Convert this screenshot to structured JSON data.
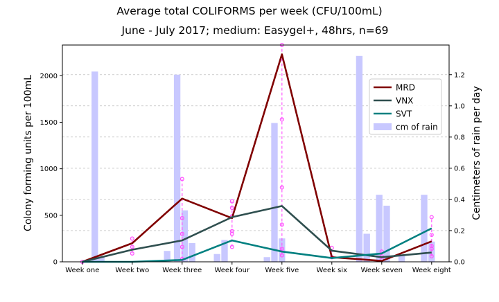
{
  "chart_data": {
    "type": "line",
    "title": "Average total COLIFORMS per week (CFU/100mL)",
    "subtitle": "June - July 2017; medium: Easygel+, 48hrs, n=69",
    "ylabel": "Colony forming units per 100mL",
    "y2label": "Centimeters of rain per day",
    "categories": [
      "Week one",
      "Week two",
      "Week three",
      "Week four",
      "Week five",
      "Week six",
      "Week seven",
      "Week eight"
    ],
    "ylim": [
      0,
      2330
    ],
    "yticks": [
      0,
      500,
      1000,
      1500,
      2000
    ],
    "y2lim": [
      0,
      1.39
    ],
    "y2ticks": [
      "0.0",
      "0.2",
      "0.4",
      "0.6",
      "0.8",
      "1.0",
      "1.2"
    ],
    "grid": true,
    "legend_position": "upper-right",
    "series": [
      {
        "name": "MRD",
        "color": "#800000",
        "values": [
          0,
          200,
          680,
          470,
          2230,
          50,
          10,
          220
        ]
      },
      {
        "name": "VNX",
        "color": "#2f4f4f",
        "values": [
          0,
          130,
          230,
          480,
          600,
          120,
          50,
          100
        ]
      },
      {
        "name": "SVT",
        "color": "#008080",
        "values": [
          0,
          0,
          20,
          230,
          110,
          40,
          90,
          360
        ]
      }
    ],
    "rain": {
      "name": "cm of rain",
      "color": "#c8c8ff",
      "bars": [
        {
          "x": 0.25,
          "v": 1.22
        },
        {
          "x": 0.38,
          "v": 0.03
        },
        {
          "x": 1.7,
          "v": 0.07
        },
        {
          "x": 1.9,
          "v": 1.2
        },
        {
          "x": 2.05,
          "v": 0.33
        },
        {
          "x": 2.2,
          "v": 0.12
        },
        {
          "x": 2.7,
          "v": 0.05
        },
        {
          "x": 2.85,
          "v": 0.14
        },
        {
          "x": 3.7,
          "v": 0.03
        },
        {
          "x": 3.85,
          "v": 0.89
        },
        {
          "x": 4.0,
          "v": 0.15
        },
        {
          "x": 5.55,
          "v": 1.32
        },
        {
          "x": 5.7,
          "v": 0.18
        },
        {
          "x": 5.95,
          "v": 0.43
        },
        {
          "x": 6.1,
          "v": 0.36
        },
        {
          "x": 6.4,
          "v": 0.04
        },
        {
          "x": 6.85,
          "v": 0.43
        },
        {
          "x": 7.0,
          "v": 0.13
        }
      ]
    },
    "samples": {
      "color": "#ff55ff",
      "points": [
        {
          "x": 0,
          "values": [
            0
          ]
        },
        {
          "x": 1,
          "values": [
            90,
            160,
            250
          ]
        },
        {
          "x": 2,
          "values": [
            30,
            160,
            300,
            470,
            890
          ]
        },
        {
          "x": 3,
          "values": [
            160,
            300,
            330,
            490,
            580,
            650
          ]
        },
        {
          "x": 4,
          "values": [
            70,
            140,
            400,
            800,
            1530,
            2330
          ]
        },
        {
          "x": 5,
          "values": [
            50,
            150
          ]
        },
        {
          "x": 6,
          "values": [
            30,
            60,
            110
          ]
        },
        {
          "x": 7,
          "values": [
            60,
            140,
            170,
            290,
            480
          ]
        }
      ]
    }
  }
}
